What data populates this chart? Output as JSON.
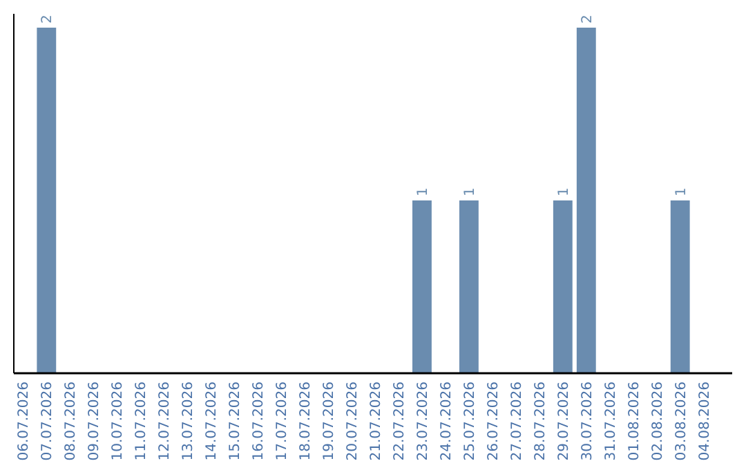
{
  "chart_data": {
    "type": "bar",
    "categories": [
      "06.07.2026",
      "07.07.2026",
      "08.07.2026",
      "09.07.2026",
      "10.07.2026",
      "11.07.2026",
      "12.07.2026",
      "13.07.2026",
      "14.07.2026",
      "15.07.2026",
      "16.07.2026",
      "17.07.2026",
      "18.07.2026",
      "19.07.2026",
      "20.07.2026",
      "21.07.2026",
      "22.07.2026",
      "23.07.2026",
      "24.07.2026",
      "25.07.2026",
      "26.07.2026",
      "27.07.2026",
      "28.07.2026",
      "29.07.2026",
      "30.07.2026",
      "31.07.2026",
      "01.08.2026",
      "02.08.2026",
      "03.08.2026",
      "04.08.2026"
    ],
    "values": [
      0,
      2,
      0,
      0,
      0,
      0,
      0,
      0,
      0,
      0,
      0,
      0,
      0,
      0,
      0,
      0,
      0,
      1,
      0,
      1,
      0,
      0,
      0,
      1,
      2,
      0,
      0,
      0,
      1,
      0
    ],
    "value_labels": [
      null,
      "2",
      null,
      null,
      null,
      null,
      null,
      null,
      null,
      null,
      null,
      null,
      null,
      null,
      null,
      null,
      null,
      "1",
      null,
      "1",
      null,
      null,
      null,
      "1",
      "2",
      null,
      null,
      null,
      "1",
      null
    ],
    "color": "#6a8caf",
    "ylim": [
      0,
      2
    ],
    "tick_labels": "x"
  }
}
